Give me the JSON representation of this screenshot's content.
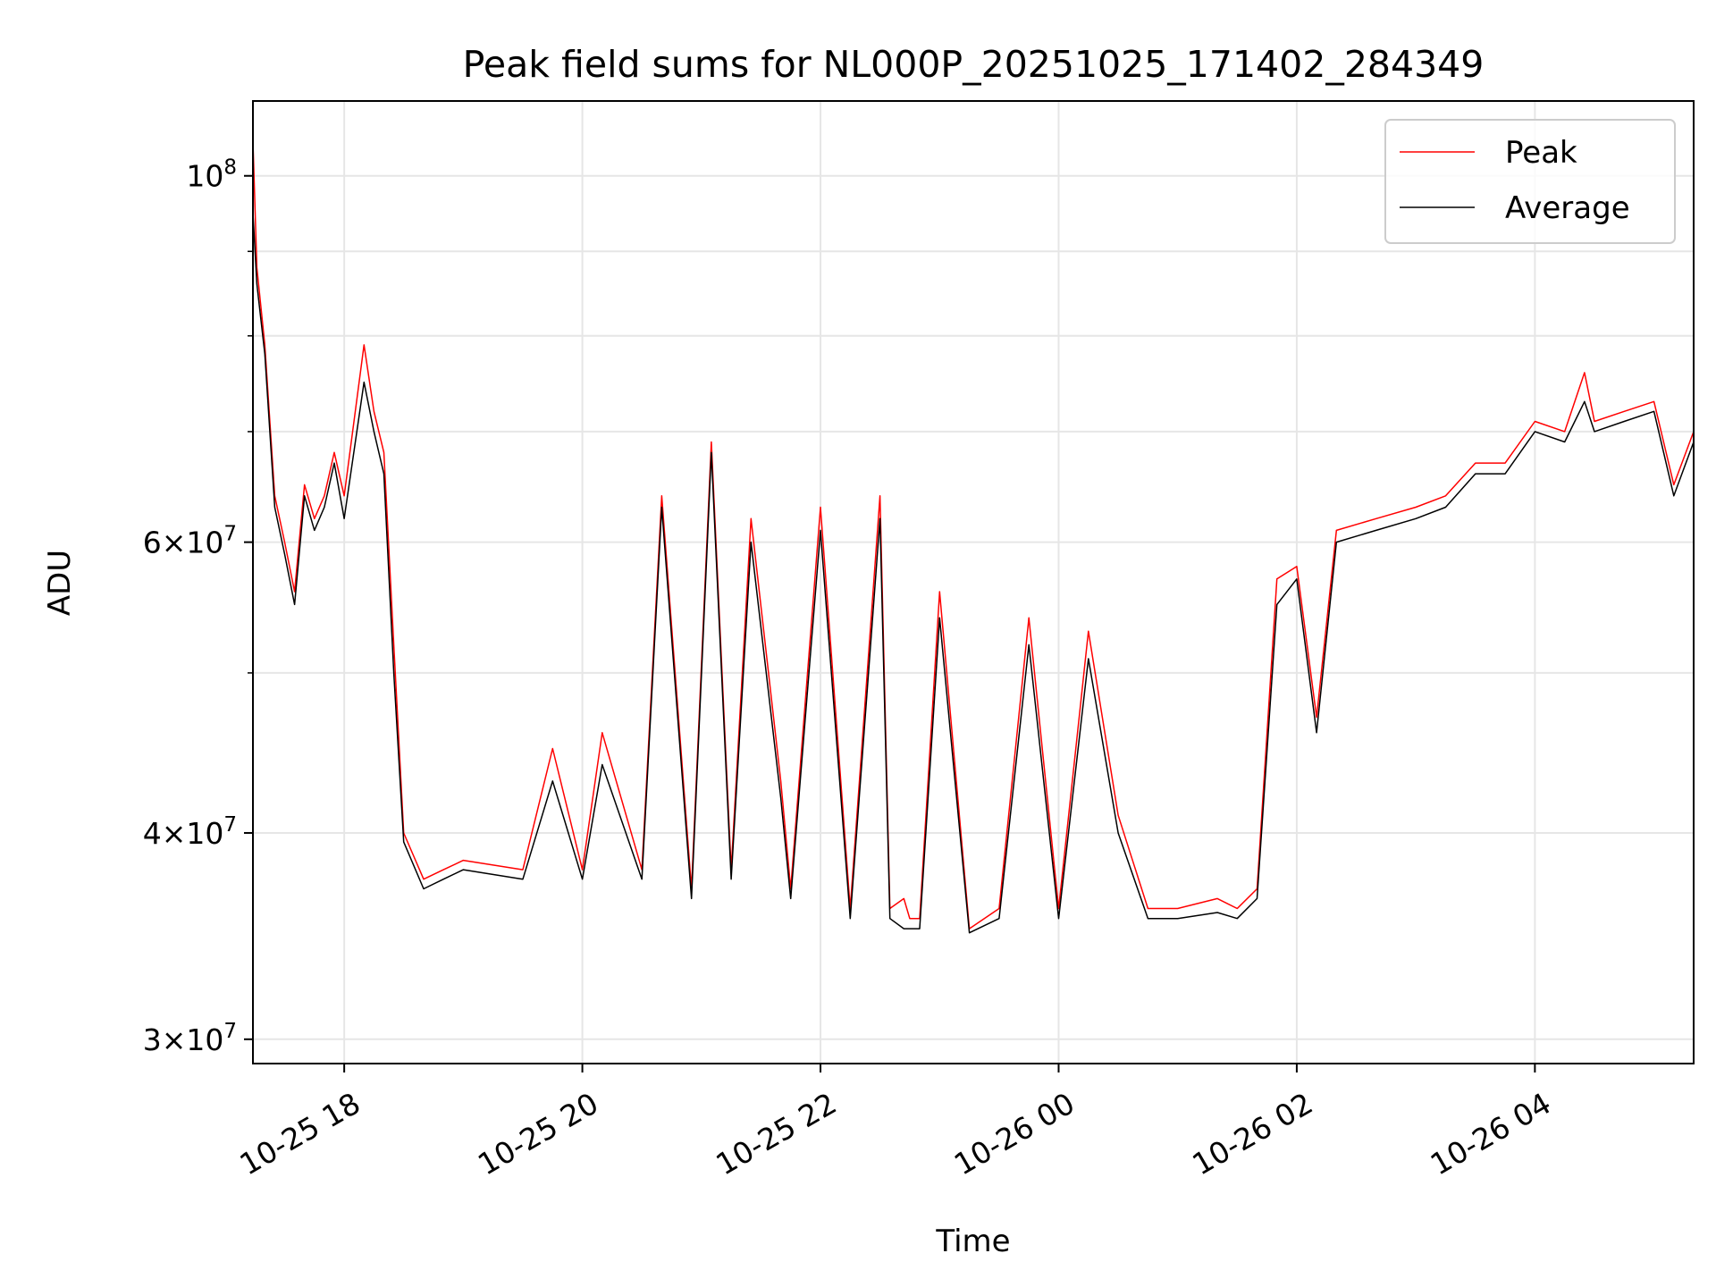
{
  "chart_data": {
    "type": "line",
    "title": "Peak field sums for NL000P_20251025_171402_284349",
    "xlabel": "Time",
    "ylabel": "ADU",
    "yscale": "log",
    "xlim": [
      "2025-10-25 17:14",
      "2025-10-26 05:20"
    ],
    "ylim": [
      29000000,
      111000000
    ],
    "grid": true,
    "legend_position": "top-right",
    "x_ticks": [
      {
        "value": "2025-10-25 18:00",
        "label": "10-25 18"
      },
      {
        "value": "2025-10-25 20:00",
        "label": "10-25 20"
      },
      {
        "value": "2025-10-25 22:00",
        "label": "10-25 22"
      },
      {
        "value": "2025-10-26 00:00",
        "label": "10-26 00"
      },
      {
        "value": "2025-10-26 02:00",
        "label": "10-26 02"
      },
      {
        "value": "2025-10-26 04:00",
        "label": "10-26 04"
      }
    ],
    "y_ticks": [
      {
        "value": 100000000,
        "base": "10",
        "exp": "8",
        "mant": ""
      },
      {
        "value": 60000000,
        "base": "10",
        "exp": "7",
        "mant": "6"
      },
      {
        "value": 40000000,
        "base": "10",
        "exp": "7",
        "mant": "4"
      },
      {
        "value": 30000000,
        "base": "10",
        "exp": "7",
        "mant": "3"
      }
    ],
    "y_minor_ticks": [
      90000000,
      80000000,
      70000000,
      50000000
    ],
    "series": [
      {
        "name": "Peak",
        "color": "#ff0000",
        "x": [
          "2025-10-25 17:14",
          "2025-10-25 17:16",
          "2025-10-25 17:20",
          "2025-10-25 17:25",
          "2025-10-25 17:30",
          "2025-10-25 17:35",
          "2025-10-25 17:40",
          "2025-10-25 17:45",
          "2025-10-25 17:50",
          "2025-10-25 17:55",
          "2025-10-25 18:00",
          "2025-10-25 18:10",
          "2025-10-25 18:15",
          "2025-10-25 18:20",
          "2025-10-25 18:25",
          "2025-10-25 18:30",
          "2025-10-25 18:40",
          "2025-10-25 18:50",
          "2025-10-25 19:00",
          "2025-10-25 19:30",
          "2025-10-25 19:45",
          "2025-10-25 20:00",
          "2025-10-25 20:10",
          "2025-10-25 20:30",
          "2025-10-25 20:40",
          "2025-10-25 20:55",
          "2025-10-25 21:05",
          "2025-10-25 21:15",
          "2025-10-25 21:25",
          "2025-10-25 21:40",
          "2025-10-25 21:45",
          "2025-10-25 22:00",
          "2025-10-25 22:15",
          "2025-10-25 22:30",
          "2025-10-25 22:35",
          "2025-10-25 22:42",
          "2025-10-25 22:45",
          "2025-10-25 22:50",
          "2025-10-25 23:00",
          "2025-10-25 23:15",
          "2025-10-25 23:30",
          "2025-10-25 23:45",
          "2025-10-26 00:00",
          "2025-10-26 00:15",
          "2025-10-26 00:30",
          "2025-10-26 00:45",
          "2025-10-26 01:00",
          "2025-10-26 01:20",
          "2025-10-26 01:30",
          "2025-10-26 01:40",
          "2025-10-26 01:50",
          "2025-10-26 02:00",
          "2025-10-26 02:10",
          "2025-10-26 02:20",
          "2025-10-26 02:40",
          "2025-10-26 03:00",
          "2025-10-26 03:15",
          "2025-10-26 03:30",
          "2025-10-26 03:45",
          "2025-10-26 04:00",
          "2025-10-26 04:15",
          "2025-10-26 04:25",
          "2025-10-26 04:30",
          "2025-10-26 04:45",
          "2025-10-26 05:00",
          "2025-10-26 05:10",
          "2025-10-26 05:20"
        ],
        "y": [
          105000000,
          88000000,
          79000000,
          64000000,
          60000000,
          56000000,
          65000000,
          62000000,
          64000000,
          68000000,
          64000000,
          79000000,
          72000000,
          68000000,
          52000000,
          40000000,
          37500000,
          38000000,
          38500000,
          38000000,
          45000000,
          38000000,
          46000000,
          38000000,
          64000000,
          37000000,
          69000000,
          38000000,
          62000000,
          43000000,
          37000000,
          63000000,
          36000000,
          64000000,
          36000000,
          36500000,
          35500000,
          35500000,
          56000000,
          35000000,
          36000000,
          54000000,
          36000000,
          53000000,
          41000000,
          36000000,
          36000000,
          36500000,
          36000000,
          37000000,
          57000000,
          58000000,
          47000000,
          61000000,
          62000000,
          63000000,
          64000000,
          67000000,
          67000000,
          71000000,
          70000000,
          76000000,
          71000000,
          72000000,
          73000000,
          65000000,
          70000000
        ]
      },
      {
        "name": "Average",
        "color": "#000000",
        "x": [
          "2025-10-25 17:14",
          "2025-10-25 17:16",
          "2025-10-25 17:20",
          "2025-10-25 17:25",
          "2025-10-25 17:30",
          "2025-10-25 17:35",
          "2025-10-25 17:40",
          "2025-10-25 17:45",
          "2025-10-25 17:50",
          "2025-10-25 17:55",
          "2025-10-25 18:00",
          "2025-10-25 18:10",
          "2025-10-25 18:15",
          "2025-10-25 18:20",
          "2025-10-25 18:25",
          "2025-10-25 18:30",
          "2025-10-25 18:40",
          "2025-10-25 18:50",
          "2025-10-25 19:00",
          "2025-10-25 19:30",
          "2025-10-25 19:45",
          "2025-10-25 20:00",
          "2025-10-25 20:10",
          "2025-10-25 20:30",
          "2025-10-25 20:40",
          "2025-10-25 20:55",
          "2025-10-25 21:05",
          "2025-10-25 21:15",
          "2025-10-25 21:25",
          "2025-10-25 21:40",
          "2025-10-25 21:45",
          "2025-10-25 22:00",
          "2025-10-25 22:15",
          "2025-10-25 22:30",
          "2025-10-25 22:35",
          "2025-10-25 22:42",
          "2025-10-25 22:45",
          "2025-10-25 22:50",
          "2025-10-25 23:00",
          "2025-10-25 23:15",
          "2025-10-25 23:30",
          "2025-10-25 23:45",
          "2025-10-26 00:00",
          "2025-10-26 00:15",
          "2025-10-26 00:30",
          "2025-10-26 00:45",
          "2025-10-26 01:00",
          "2025-10-26 01:20",
          "2025-10-26 01:30",
          "2025-10-26 01:40",
          "2025-10-26 01:50",
          "2025-10-26 02:00",
          "2025-10-26 02:10",
          "2025-10-26 02:20",
          "2025-10-26 02:40",
          "2025-10-26 03:00",
          "2025-10-26 03:15",
          "2025-10-26 03:30",
          "2025-10-26 03:45",
          "2025-10-26 04:00",
          "2025-10-26 04:15",
          "2025-10-26 04:25",
          "2025-10-26 04:30",
          "2025-10-26 04:45",
          "2025-10-26 05:00",
          "2025-10-26 05:10",
          "2025-10-26 05:20"
        ],
        "y": [
          95000000,
          86000000,
          78000000,
          63000000,
          59000000,
          55000000,
          64000000,
          61000000,
          63000000,
          67000000,
          62000000,
          75000000,
          70000000,
          66000000,
          50000000,
          39500000,
          37000000,
          37500000,
          38000000,
          37500000,
          43000000,
          37500000,
          44000000,
          37500000,
          63000000,
          36500000,
          68000000,
          37500000,
          60000000,
          42000000,
          36500000,
          61000000,
          35500000,
          62000000,
          35500000,
          35000000,
          35000000,
          35000000,
          54000000,
          34800000,
          35500000,
          52000000,
          35500000,
          51000000,
          40000000,
          35500000,
          35500000,
          35800000,
          35500000,
          36500000,
          55000000,
          57000000,
          46000000,
          60000000,
          61000000,
          62000000,
          63000000,
          66000000,
          66000000,
          70000000,
          69000000,
          73000000,
          70000000,
          71000000,
          72000000,
          64000000,
          69000000
        ]
      }
    ]
  }
}
